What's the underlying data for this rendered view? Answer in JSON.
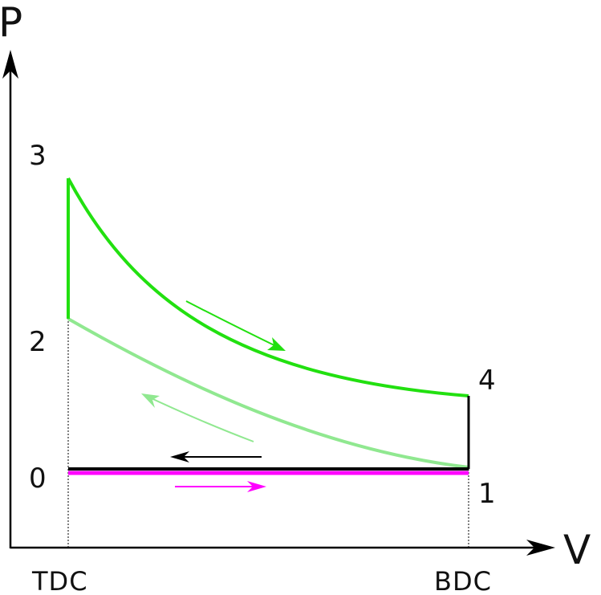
{
  "axes": {
    "y_label": "P",
    "x_label": "V"
  },
  "points": {
    "p3": "3",
    "p2": "2",
    "p0": "0",
    "p4": "4",
    "p1": "1"
  },
  "positions": {
    "tdc": "TDC",
    "bdc": "BDC"
  },
  "colors": {
    "power_stroke": "#22e010",
    "compression": "#90e890",
    "intake": "#ff00ff",
    "exhaust": "#000000",
    "axis": "#000000"
  }
}
